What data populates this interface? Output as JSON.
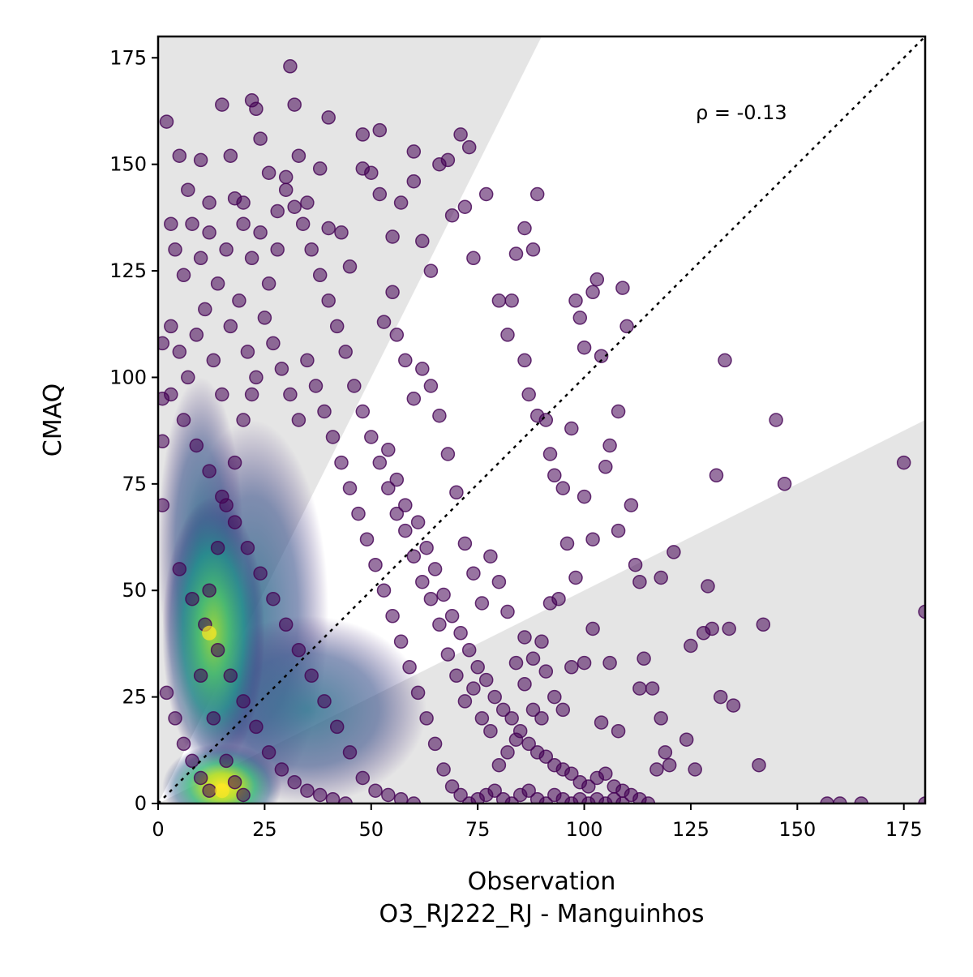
{
  "chart_data": {
    "type": "scatter",
    "xlabel": "Observation",
    "xlabel_sub": "O3_RJ222_RJ - Manguinhos",
    "ylabel": "CMAQ",
    "annotation": "ρ = -0.13",
    "xlim": [
      0,
      180
    ],
    "ylim": [
      0,
      180
    ],
    "xticks": [
      0,
      25,
      50,
      75,
      100,
      125,
      150,
      175
    ],
    "yticks": [
      0,
      25,
      50,
      75,
      100,
      125,
      150,
      175
    ],
    "grid": false,
    "legend": "none",
    "reference_line": {
      "type": "1:1",
      "style": "dotted",
      "color": "#000000"
    },
    "shaded_bands": [
      {
        "description": "outside factor-of-2 region above",
        "slope_min": 2,
        "color": "#e5e5e5"
      },
      {
        "description": "outside factor-of-2 region below",
        "slope_max": 0.5,
        "color": "#e5e5e5"
      }
    ],
    "colormap": "viridis",
    "point_color_sparse": "#440154",
    "density_peaks": [
      {
        "x": 15,
        "y": 3
      },
      {
        "x": 12,
        "y": 40
      }
    ],
    "points": [
      [
        2,
        160
      ],
      [
        3,
        136
      ],
      [
        5,
        152
      ],
      [
        7,
        144
      ],
      [
        10,
        151
      ],
      [
        12,
        141
      ],
      [
        15,
        164
      ],
      [
        17,
        152
      ],
      [
        20,
        141
      ],
      [
        22,
        165
      ],
      [
        23,
        163
      ],
      [
        24,
        156
      ],
      [
        26,
        148
      ],
      [
        28,
        139
      ],
      [
        31,
        173
      ],
      [
        32,
        164
      ],
      [
        33,
        152
      ],
      [
        30,
        147
      ],
      [
        35,
        141
      ],
      [
        38,
        149
      ],
      [
        40,
        135
      ],
      [
        40,
        161
      ],
      [
        43,
        134
      ],
      [
        45,
        126
      ],
      [
        48,
        157
      ],
      [
        48,
        149
      ],
      [
        50,
        148
      ],
      [
        52,
        158
      ],
      [
        52,
        143
      ],
      [
        55,
        133
      ],
      [
        57,
        141
      ],
      [
        60,
        153
      ],
      [
        60,
        146
      ],
      [
        62,
        132
      ],
      [
        64,
        125
      ],
      [
        66,
        150
      ],
      [
        68,
        151
      ],
      [
        69,
        138
      ],
      [
        71,
        157
      ],
      [
        73,
        154
      ],
      [
        72,
        140
      ],
      [
        74,
        128
      ],
      [
        77,
        143
      ],
      [
        80,
        118
      ],
      [
        84,
        129
      ],
      [
        86,
        135
      ],
      [
        88,
        130
      ],
      [
        89,
        143
      ],
      [
        82,
        110
      ],
      [
        83,
        118
      ],
      [
        86,
        104
      ],
      [
        87,
        96
      ],
      [
        89,
        91
      ],
      [
        91,
        90
      ],
      [
        92,
        82
      ],
      [
        93,
        77
      ],
      [
        95,
        74
      ],
      [
        97,
        88
      ],
      [
        98,
        118
      ],
      [
        99,
        114
      ],
      [
        100,
        107
      ],
      [
        102,
        120
      ],
      [
        103,
        123
      ],
      [
        104,
        105
      ],
      [
        106,
        84
      ],
      [
        108,
        92
      ],
      [
        109,
        121
      ],
      [
        110,
        112
      ],
      [
        111,
        70
      ],
      [
        112,
        56
      ],
      [
        113,
        52
      ],
      [
        108,
        64
      ],
      [
        105,
        79
      ],
      [
        102,
        62
      ],
      [
        100,
        72
      ],
      [
        98,
        53
      ],
      [
        96,
        61
      ],
      [
        94,
        48
      ],
      [
        92,
        47
      ],
      [
        90,
        38
      ],
      [
        88,
        34
      ],
      [
        86,
        39
      ],
      [
        84,
        33
      ],
      [
        82,
        45
      ],
      [
        80,
        52
      ],
      [
        78,
        58
      ],
      [
        76,
        47
      ],
      [
        74,
        54
      ],
      [
        72,
        61
      ],
      [
        70,
        73
      ],
      [
        68,
        82
      ],
      [
        66,
        91
      ],
      [
        64,
        98
      ],
      [
        62,
        102
      ],
      [
        60,
        95
      ],
      [
        58,
        104
      ],
      [
        56,
        110
      ],
      [
        55,
        120
      ],
      [
        53,
        113
      ],
      [
        54,
        83
      ],
      [
        56,
        76
      ],
      [
        58,
        70
      ],
      [
        61,
        66
      ],
      [
        63,
        60
      ],
      [
        65,
        55
      ],
      [
        67,
        49
      ],
      [
        69,
        44
      ],
      [
        71,
        40
      ],
      [
        73,
        36
      ],
      [
        75,
        32
      ],
      [
        77,
        29
      ],
      [
        79,
        25
      ],
      [
        81,
        22
      ],
      [
        83,
        20
      ],
      [
        85,
        17
      ],
      [
        87,
        14
      ],
      [
        89,
        12
      ],
      [
        91,
        11
      ],
      [
        93,
        9
      ],
      [
        95,
        8
      ],
      [
        97,
        7
      ],
      [
        99,
        5
      ],
      [
        101,
        4
      ],
      [
        103,
        6
      ],
      [
        105,
        7
      ],
      [
        107,
        4
      ],
      [
        109,
        3
      ],
      [
        111,
        2
      ],
      [
        113,
        1
      ],
      [
        115,
        0
      ],
      [
        117,
        8
      ],
      [
        118,
        20
      ],
      [
        119,
        12
      ],
      [
        120,
        9
      ],
      [
        121,
        59
      ],
      [
        118,
        53
      ],
      [
        114,
        34
      ],
      [
        113,
        27
      ],
      [
        116,
        27
      ],
      [
        124,
        15
      ],
      [
        125,
        37
      ],
      [
        126,
        8
      ],
      [
        128,
        40
      ],
      [
        129,
        51
      ],
      [
        130,
        41
      ],
      [
        131,
        77
      ],
      [
        132,
        25
      ],
      [
        133,
        104
      ],
      [
        134,
        41
      ],
      [
        135,
        23
      ],
      [
        141,
        9
      ],
      [
        142,
        42
      ],
      [
        145,
        90
      ],
      [
        147,
        75
      ],
      [
        157,
        0
      ],
      [
        160,
        0
      ],
      [
        165,
        0
      ],
      [
        175,
        80
      ],
      [
        180,
        45
      ],
      [
        180,
        0
      ],
      [
        100,
        33
      ],
      [
        102,
        41
      ],
      [
        104,
        19
      ],
      [
        106,
        33
      ],
      [
        108,
        17
      ],
      [
        97,
        32
      ],
      [
        95,
        22
      ],
      [
        93,
        25
      ],
      [
        91,
        31
      ],
      [
        90,
        20
      ],
      [
        88,
        22
      ],
      [
        86,
        28
      ],
      [
        84,
        15
      ],
      [
        82,
        12
      ],
      [
        80,
        9
      ],
      [
        78,
        17
      ],
      [
        76,
        20
      ],
      [
        74,
        27
      ],
      [
        72,
        24
      ],
      [
        70,
        30
      ],
      [
        68,
        35
      ],
      [
        66,
        42
      ],
      [
        64,
        48
      ],
      [
        62,
        52
      ],
      [
        60,
        58
      ],
      [
        58,
        64
      ],
      [
        56,
        68
      ],
      [
        54,
        74
      ],
      [
        52,
        80
      ],
      [
        50,
        86
      ],
      [
        48,
        92
      ],
      [
        46,
        98
      ],
      [
        44,
        106
      ],
      [
        42,
        112
      ],
      [
        40,
        118
      ],
      [
        38,
        124
      ],
      [
        36,
        130
      ],
      [
        34,
        136
      ],
      [
        32,
        140
      ],
      [
        30,
        144
      ],
      [
        28,
        130
      ],
      [
        26,
        122
      ],
      [
        24,
        134
      ],
      [
        22,
        128
      ],
      [
        20,
        136
      ],
      [
        18,
        142
      ],
      [
        16,
        130
      ],
      [
        14,
        122
      ],
      [
        12,
        134
      ],
      [
        10,
        128
      ],
      [
        8,
        136
      ],
      [
        6,
        124
      ],
      [
        4,
        130
      ],
      [
        3,
        112
      ],
      [
        5,
        106
      ],
      [
        7,
        100
      ],
      [
        9,
        110
      ],
      [
        11,
        116
      ],
      [
        13,
        104
      ],
      [
        15,
        96
      ],
      [
        17,
        112
      ],
      [
        19,
        118
      ],
      [
        21,
        106
      ],
      [
        23,
        100
      ],
      [
        25,
        114
      ],
      [
        27,
        108
      ],
      [
        29,
        102
      ],
      [
        31,
        96
      ],
      [
        33,
        90
      ],
      [
        35,
        104
      ],
      [
        37,
        98
      ],
      [
        39,
        92
      ],
      [
        41,
        86
      ],
      [
        43,
        80
      ],
      [
        45,
        74
      ],
      [
        47,
        68
      ],
      [
        49,
        62
      ],
      [
        51,
        56
      ],
      [
        53,
        50
      ],
      [
        55,
        44
      ],
      [
        57,
        38
      ],
      [
        59,
        32
      ],
      [
        61,
        26
      ],
      [
        63,
        20
      ],
      [
        65,
        14
      ],
      [
        67,
        8
      ],
      [
        69,
        4
      ],
      [
        71,
        2
      ],
      [
        73,
        0
      ],
      [
        75,
        1
      ],
      [
        77,
        2
      ],
      [
        79,
        3
      ],
      [
        81,
        1
      ],
      [
        83,
        0
      ],
      [
        85,
        2
      ],
      [
        87,
        3
      ],
      [
        89,
        1
      ],
      [
        91,
        0
      ],
      [
        93,
        2
      ],
      [
        95,
        1
      ],
      [
        97,
        0
      ],
      [
        99,
        1
      ],
      [
        101,
        0
      ],
      [
        103,
        1
      ],
      [
        105,
        0
      ],
      [
        107,
        1
      ],
      [
        109,
        0
      ],
      [
        3,
        96
      ],
      [
        6,
        90
      ],
      [
        9,
        84
      ],
      [
        12,
        78
      ],
      [
        15,
        72
      ],
      [
        18,
        66
      ],
      [
        21,
        60
      ],
      [
        24,
        54
      ],
      [
        27,
        48
      ],
      [
        30,
        42
      ],
      [
        33,
        36
      ],
      [
        36,
        30
      ],
      [
        39,
        24
      ],
      [
        42,
        18
      ],
      [
        45,
        12
      ],
      [
        48,
        6
      ],
      [
        51,
        3
      ],
      [
        54,
        2
      ],
      [
        57,
        1
      ],
      [
        60,
        0
      ],
      [
        5,
        55
      ],
      [
        8,
        48
      ],
      [
        11,
        42
      ],
      [
        14,
        36
      ],
      [
        17,
        30
      ],
      [
        20,
        24
      ],
      [
        23,
        18
      ],
      [
        26,
        12
      ],
      [
        29,
        8
      ],
      [
        32,
        5
      ],
      [
        35,
        3
      ],
      [
        38,
        2
      ],
      [
        41,
        1
      ],
      [
        44,
        0
      ],
      [
        10,
        30
      ],
      [
        12,
        50
      ],
      [
        14,
        60
      ],
      [
        16,
        70
      ],
      [
        18,
        80
      ],
      [
        20,
        90
      ],
      [
        22,
        96
      ],
      [
        13,
        20
      ],
      [
        16,
        10
      ],
      [
        18,
        5
      ],
      [
        20,
        2
      ],
      [
        12,
        3
      ],
      [
        10,
        6
      ],
      [
        8,
        10
      ],
      [
        6,
        14
      ],
      [
        4,
        20
      ],
      [
        2,
        26
      ],
      [
        1,
        70
      ],
      [
        1,
        85
      ],
      [
        1,
        95
      ],
      [
        1,
        108
      ]
    ]
  }
}
